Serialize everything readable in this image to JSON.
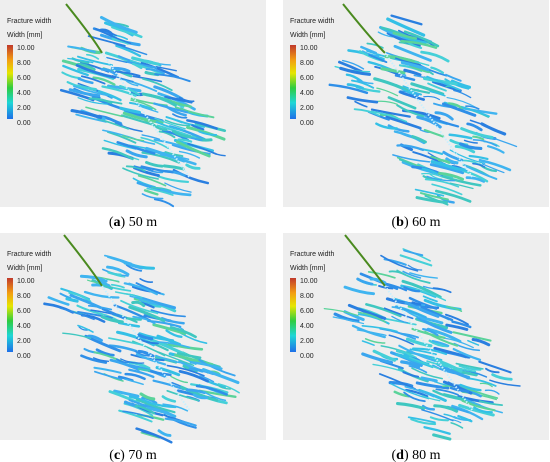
{
  "panels": [
    {
      "legend_title": "Fracture width",
      "legend_unit": "Width [mm]",
      "scale": [
        "10.00",
        "8.00",
        "6.00",
        "4.00",
        "2.00",
        "0.00"
      ],
      "caption": {
        "open": "(",
        "letter": "a",
        "rest": ") 50 m"
      }
    },
    {
      "legend_title": "Fracture width",
      "legend_unit": "Width [mm]",
      "scale": [
        "10.00",
        "8.00",
        "6.00",
        "4.00",
        "2.00",
        "0.00"
      ],
      "caption": {
        "open": "(",
        "letter": "b",
        "rest": ") 60 m"
      }
    },
    {
      "legend_title": "Fracture width",
      "legend_unit": "Width [mm]",
      "scale": [
        "10.00",
        "8.00",
        "6.00",
        "4.00",
        "2.00",
        "0.00"
      ],
      "caption": {
        "open": "(",
        "letter": "c",
        "rest": ") 70 m"
      }
    },
    {
      "legend_title": "Fracture width",
      "legend_unit": "Width [mm]",
      "scale": [
        "10.00",
        "8.00",
        "6.00",
        "4.00",
        "2.00",
        "0.00"
      ],
      "caption": {
        "open": "(",
        "letter": "d",
        "rest": ") 80 m"
      }
    }
  ]
}
